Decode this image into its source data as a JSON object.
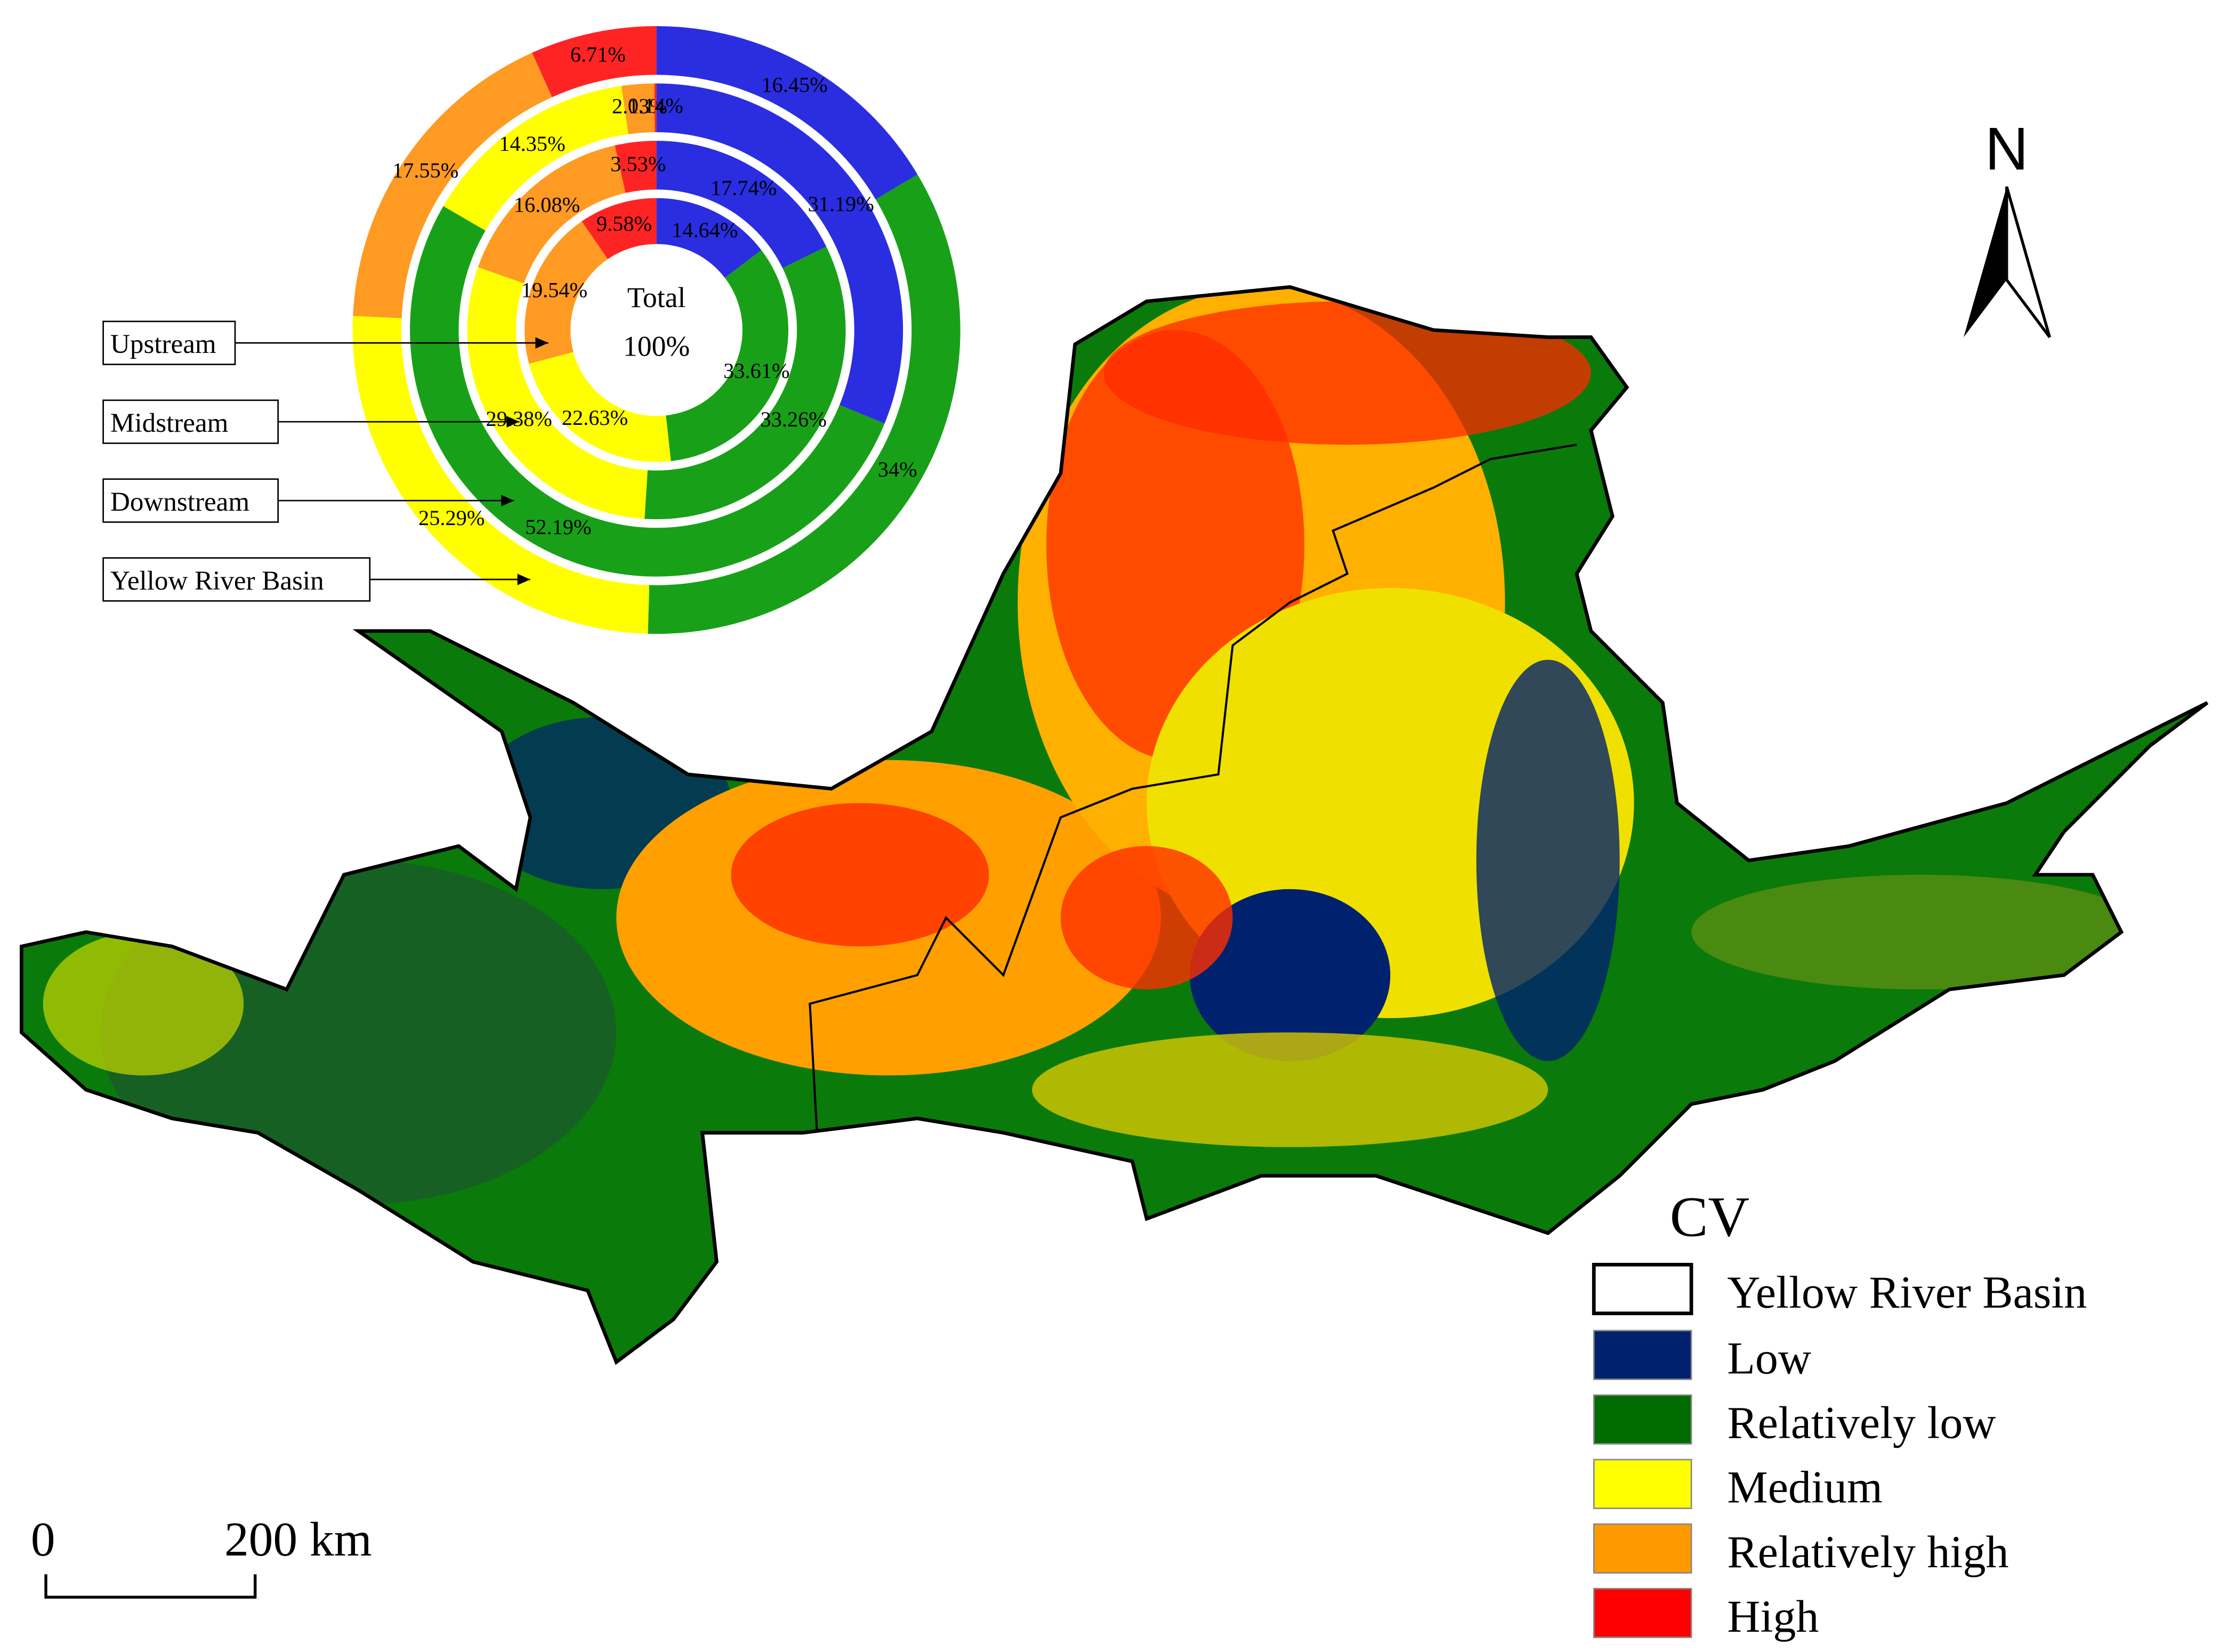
{
  "chart_data": {
    "type": "donut",
    "center_text": [
      "Total",
      "100%"
    ],
    "categories": [
      "Low",
      "Relatively low",
      "Medium",
      "Relatively high",
      "High"
    ],
    "colors": [
      "#2a2ee0",
      "#19a019",
      "#ffff00",
      "#ff9a22",
      "#ff2424"
    ],
    "series": [
      {
        "name": "Upstream",
        "values": [
          14.64,
          33.61,
          22.63,
          19.54,
          9.58
        ],
        "value_labels": [
          "14.64%",
          "33.61%",
          "22.63%",
          "19.54%",
          "9.58%"
        ]
      },
      {
        "name": "Midstream",
        "values": [
          17.74,
          33.26,
          29.38,
          16.08,
          3.53
        ],
        "value_labels": [
          "17.74%",
          "33.26%",
          "29.38%",
          "16.08%",
          "3.53%"
        ]
      },
      {
        "name": "Downstream",
        "values": [
          31.19,
          52.19,
          14.35,
          2.13,
          0.14
        ],
        "value_labels": [
          "31.19%",
          "52.19%",
          "14.35%",
          "2.13%",
          "0.14%"
        ]
      },
      {
        "name": "Yellow River Basin",
        "values": [
          16.45,
          34,
          25.29,
          17.55,
          6.71
        ],
        "value_labels": [
          "16.45%",
          "34%",
          "25.29%",
          "17.55%",
          "6.71%"
        ]
      }
    ]
  },
  "map": {
    "legend_title": "CV",
    "boundary_label": "Yellow River Basin",
    "map_colors": [
      "#00226e",
      "#006b00",
      "#ffff00",
      "#ff9900",
      "#ff0000"
    ],
    "north": "N",
    "scale_labels": [
      "0",
      "200 km"
    ]
  }
}
